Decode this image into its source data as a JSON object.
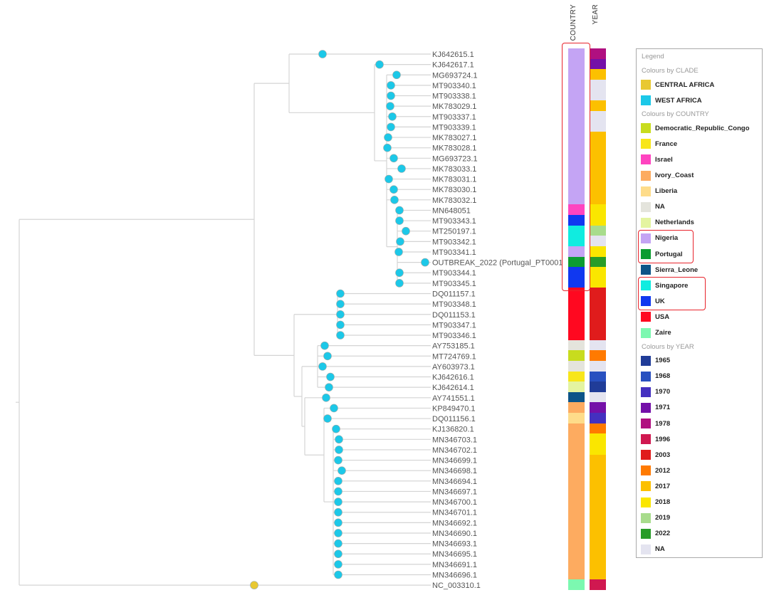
{
  "columns": {
    "country": "COUNTRY",
    "year": "YEAR"
  },
  "leaves": [
    {
      "name": "KJ642615.1",
      "country": "Nigeria",
      "year": "1978",
      "clade": "WEST AFRICA"
    },
    {
      "name": "KJ642617.1",
      "country": "Nigeria",
      "year": "1971",
      "clade": "WEST AFRICA"
    },
    {
      "name": "MG693724.1",
      "country": "Nigeria",
      "year": "2017",
      "clade": "WEST AFRICA"
    },
    {
      "name": "MT903340.1",
      "country": "Nigeria",
      "year": "NA",
      "clade": "WEST AFRICA"
    },
    {
      "name": "MT903338.1",
      "country": "Nigeria",
      "year": "NA",
      "clade": "WEST AFRICA"
    },
    {
      "name": "MK783029.1",
      "country": "Nigeria",
      "year": "2017",
      "clade": "WEST AFRICA"
    },
    {
      "name": "MT903337.1",
      "country": "Nigeria",
      "year": "NA",
      "clade": "WEST AFRICA"
    },
    {
      "name": "MT903339.1",
      "country": "Nigeria",
      "year": "NA",
      "clade": "WEST AFRICA"
    },
    {
      "name": "MK783027.1",
      "country": "Nigeria",
      "year": "2017",
      "clade": "WEST AFRICA"
    },
    {
      "name": "MK783028.1",
      "country": "Nigeria",
      "year": "2017",
      "clade": "WEST AFRICA"
    },
    {
      "name": "MG693723.1",
      "country": "Nigeria",
      "year": "2017",
      "clade": "WEST AFRICA"
    },
    {
      "name": "MK783033.1",
      "country": "Nigeria",
      "year": "2017",
      "clade": "WEST AFRICA"
    },
    {
      "name": "MK783031.1",
      "country": "Nigeria",
      "year": "2017",
      "clade": "WEST AFRICA"
    },
    {
      "name": "MK783030.1",
      "country": "Nigeria",
      "year": "2017",
      "clade": "WEST AFRICA"
    },
    {
      "name": "MK783032.1",
      "country": "Nigeria",
      "year": "2017",
      "clade": "WEST AFRICA"
    },
    {
      "name": "MN648051",
      "country": "Israel",
      "year": "2018",
      "clade": "WEST AFRICA"
    },
    {
      "name": "MT903343.1",
      "country": "UK",
      "year": "2018",
      "clade": "WEST AFRICA"
    },
    {
      "name": "MT250197.1",
      "country": "Singapore",
      "year": "2019",
      "clade": "WEST AFRICA"
    },
    {
      "name": "MT903342.1",
      "country": "Singapore",
      "year": "NA",
      "clade": "WEST AFRICA"
    },
    {
      "name": "MT903341.1",
      "country": "Nigeria",
      "year": "2018",
      "clade": "WEST AFRICA"
    },
    {
      "name": "OUTBREAK_2022 (Portugal_PT0001)",
      "country": "Portugal",
      "year": "2022",
      "clade": "WEST AFRICA"
    },
    {
      "name": "MT903344.1",
      "country": "UK",
      "year": "2018",
      "clade": "WEST AFRICA"
    },
    {
      "name": "MT903345.1",
      "country": "UK",
      "year": "2018",
      "clade": "WEST AFRICA"
    },
    {
      "name": "DQ011157.1",
      "country": "USA",
      "year": "2003",
      "clade": "WEST AFRICA"
    },
    {
      "name": "MT903348.1",
      "country": "USA",
      "year": "2003",
      "clade": "WEST AFRICA"
    },
    {
      "name": "DQ011153.1",
      "country": "USA",
      "year": "2003",
      "clade": "WEST AFRICA"
    },
    {
      "name": "MT903347.1",
      "country": "USA",
      "year": "2003",
      "clade": "WEST AFRICA"
    },
    {
      "name": "MT903346.1",
      "country": "USA",
      "year": "2003",
      "clade": "WEST AFRICA"
    },
    {
      "name": "AY753185.1",
      "country": "NA",
      "year": "NA",
      "clade": "WEST AFRICA"
    },
    {
      "name": "MT724769.1",
      "country": "Democratic_Republic_Congo",
      "year": "2012",
      "clade": "WEST AFRICA"
    },
    {
      "name": "AY603973.1",
      "country": "NA",
      "year": "NA",
      "clade": "WEST AFRICA"
    },
    {
      "name": "KJ642616.1",
      "country": "France",
      "year": "1968",
      "clade": "WEST AFRICA"
    },
    {
      "name": "KJ642614.1",
      "country": "Netherlands",
      "year": "1965",
      "clade": "WEST AFRICA"
    },
    {
      "name": "AY741551.1",
      "country": "Sierra_Leone",
      "year": "NA",
      "clade": "WEST AFRICA"
    },
    {
      "name": "KP849470.1",
      "country": "Ivory_Coast",
      "year": "1971",
      "clade": "WEST AFRICA"
    },
    {
      "name": "DQ011156.1",
      "country": "Liberia",
      "year": "1970",
      "clade": "WEST AFRICA"
    },
    {
      "name": "KJ136820.1",
      "country": "Ivory_Coast",
      "year": "2012",
      "clade": "WEST AFRICA"
    },
    {
      "name": "MN346703.1",
      "country": "Ivory_Coast",
      "year": "2018",
      "clade": "WEST AFRICA"
    },
    {
      "name": "MN346702.1",
      "country": "Ivory_Coast",
      "year": "2018",
      "clade": "WEST AFRICA"
    },
    {
      "name": "MN346699.1",
      "country": "Ivory_Coast",
      "year": "2017",
      "clade": "WEST AFRICA"
    },
    {
      "name": "MN346698.1",
      "country": "Ivory_Coast",
      "year": "2017",
      "clade": "WEST AFRICA"
    },
    {
      "name": "MN346694.1",
      "country": "Ivory_Coast",
      "year": "2017",
      "clade": "WEST AFRICA"
    },
    {
      "name": "MN346697.1",
      "country": "Ivory_Coast",
      "year": "2017",
      "clade": "WEST AFRICA"
    },
    {
      "name": "MN346700.1",
      "country": "Ivory_Coast",
      "year": "2017",
      "clade": "WEST AFRICA"
    },
    {
      "name": "MN346701.1",
      "country": "Ivory_Coast",
      "year": "2017",
      "clade": "WEST AFRICA"
    },
    {
      "name": "MN346692.1",
      "country": "Ivory_Coast",
      "year": "2017",
      "clade": "WEST AFRICA"
    },
    {
      "name": "MN346690.1",
      "country": "Ivory_Coast",
      "year": "2017",
      "clade": "WEST AFRICA"
    },
    {
      "name": "MN346693.1",
      "country": "Ivory_Coast",
      "year": "2017",
      "clade": "WEST AFRICA"
    },
    {
      "name": "MN346695.1",
      "country": "Ivory_Coast",
      "year": "2017",
      "clade": "WEST AFRICA"
    },
    {
      "name": "MN346691.1",
      "country": "Ivory_Coast",
      "year": "2017",
      "clade": "WEST AFRICA"
    },
    {
      "name": "MN346696.1",
      "country": "Ivory_Coast",
      "year": "2017",
      "clade": "WEST AFRICA"
    },
    {
      "name": "NC_003310.1",
      "country": "Zaire",
      "year": "1996",
      "clade": "CENTRAL AFRICA"
    }
  ],
  "legend": {
    "title": "Legend",
    "sections": [
      {
        "title": "Colours by CLADE",
        "items": [
          {
            "label": "CENTRAL AFRICA",
            "color": "#e8c832"
          },
          {
            "label": "WEST AFRICA",
            "color": "#1cc8e8"
          }
        ]
      },
      {
        "title": "Colours by COUNTRY",
        "items": [
          {
            "label": "Democratic_Republic_Congo",
            "color": "#c8dc1e"
          },
          {
            "label": "France",
            "color": "#f8e61a"
          },
          {
            "label": "Israel",
            "color": "#ff44c0"
          },
          {
            "label": "Ivory_Coast",
            "color": "#fdab60"
          },
          {
            "label": "Liberia",
            "color": "#fedc8a"
          },
          {
            "label": "NA",
            "color": "#e4e4dc"
          },
          {
            "label": "Netherlands",
            "color": "#e4f4a0"
          },
          {
            "label": "Nigeria",
            "color": "#c4a4f4",
            "highlighted": true
          },
          {
            "label": "Portugal",
            "color": "#0c9c30",
            "highlighted": true
          },
          {
            "label": "Sierra_Leone",
            "color": "#0c5488"
          },
          {
            "label": "Singapore",
            "color": "#10ece0",
            "highlighted": true
          },
          {
            "label": "UK",
            "color": "#1038f0",
            "highlighted": true
          },
          {
            "label": "USA",
            "color": "#ff0820"
          },
          {
            "label": "Zaire",
            "color": "#7cf8b0"
          }
        ]
      },
      {
        "title": "Colours by YEAR",
        "items": [
          {
            "label": "1965",
            "color": "#203c98"
          },
          {
            "label": "1968",
            "color": "#2850c0"
          },
          {
            "label": "1970",
            "color": "#4430c0"
          },
          {
            "label": "1971",
            "color": "#7410a8"
          },
          {
            "label": "1978",
            "color": "#b01080"
          },
          {
            "label": "1996",
            "color": "#d01850"
          },
          {
            "label": "2003",
            "color": "#e01c1c"
          },
          {
            "label": "2012",
            "color": "#ff7a00"
          },
          {
            "label": "2017",
            "color": "#fcc000"
          },
          {
            "label": "2018",
            "color": "#fae600"
          },
          {
            "label": "2019",
            "color": "#a8dc8c"
          },
          {
            "label": "2022",
            "color": "#289c28"
          },
          {
            "label": "NA",
            "color": "#e4e4f0"
          }
        ]
      }
    ]
  },
  "colors": {
    "branch": "#d4d4d4",
    "label": "#555555",
    "highlight_box": "#e8242c"
  }
}
